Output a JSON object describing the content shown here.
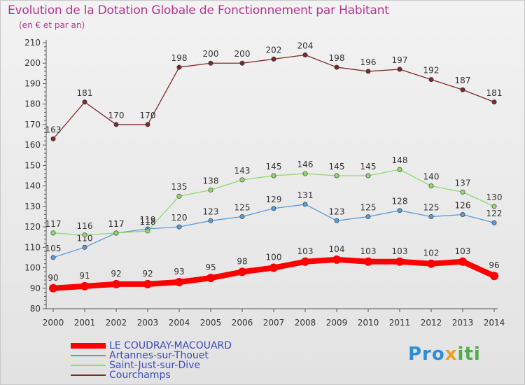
{
  "header": {
    "title": "Evolution de la Dotation Globale de Fonctionnement par Habitant",
    "subtitle": "(en € et par an)"
  },
  "logo": {
    "part1": "Pro",
    "part2": "x",
    "part3": "iti"
  },
  "colors": {
    "title": "#b0378c",
    "axis_text": "#333333",
    "legend_text": "#3a4ab8"
  },
  "chart_data": {
    "type": "line",
    "title": "Evolution de la Dotation Globale de Fonctionnement par Habitant",
    "subtitle": "(en € et par an)",
    "xlabel": "",
    "ylabel": "",
    "ylim": [
      80,
      210
    ],
    "yticks": [
      80,
      90,
      100,
      110,
      120,
      130,
      140,
      150,
      160,
      170,
      180,
      190,
      200,
      210
    ],
    "grid": false,
    "legend_position": "bottom-left",
    "x": [
      "2000",
      "2001",
      "2002",
      "2003",
      "2004",
      "2005",
      "2006",
      "2007",
      "2008",
      "2009",
      "2010",
      "2011",
      "2012",
      "2013",
      "2014"
    ],
    "series": [
      {
        "name": "LE COUDRAY-MACOUARD",
        "color": "#ff0000",
        "emphasis": true,
        "values": [
          90,
          91,
          92,
          92,
          93,
          95,
          98,
          100,
          103,
          104,
          103,
          103,
          102,
          103,
          96
        ]
      },
      {
        "name": "Artannes-sur-Thouet",
        "color": "#5b9bd5",
        "emphasis": false,
        "values": [
          105,
          110,
          117,
          119,
          120,
          123,
          125,
          129,
          131,
          123,
          125,
          128,
          125,
          126,
          122
        ]
      },
      {
        "name": "Saint-Just-sur-Dive",
        "color": "#8fd96a",
        "emphasis": false,
        "values": [
          117,
          116,
          117,
          118,
          135,
          138,
          143,
          145,
          146,
          145,
          145,
          148,
          140,
          137,
          130
        ]
      },
      {
        "name": "Courchamps",
        "color": "#7b2b2b",
        "emphasis": false,
        "values": [
          163,
          181,
          170,
          170,
          198,
          200,
          200,
          202,
          204,
          198,
          196,
          197,
          192,
          187,
          181
        ]
      }
    ]
  }
}
